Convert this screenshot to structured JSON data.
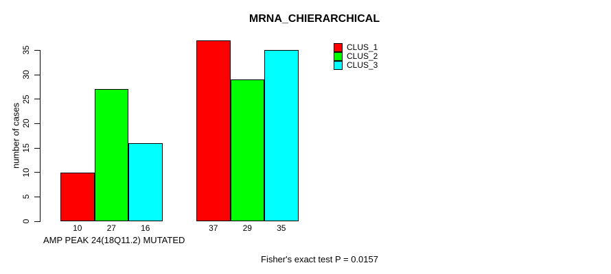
{
  "chart_data": {
    "type": "bar",
    "title": "MRNA_CHIERARCHICAL",
    "xlabel": "AMP PEAK 24(18Q11.2) MUTATED",
    "ylabel": "number of cases",
    "ylim": [
      0,
      35
    ],
    "yticks": [
      0,
      5,
      10,
      15,
      20,
      25,
      30,
      35
    ],
    "grid": false,
    "legend_position": "top-right",
    "groups": 2,
    "series": [
      {
        "name": "CLUS_1",
        "color": "#ff0000",
        "values": [
          10,
          37
        ]
      },
      {
        "name": "CLUS_2",
        "color": "#00ff00",
        "values": [
          27,
          29
        ]
      },
      {
        "name": "CLUS_3",
        "color": "#00ffff",
        "values": [
          16,
          35
        ]
      }
    ],
    "bar_value_labels": [
      [
        "10",
        "27",
        "16"
      ],
      [
        "37",
        "29",
        "35"
      ]
    ]
  },
  "footer": {
    "stat_text": "Fisher's exact test P = 0.0157"
  }
}
